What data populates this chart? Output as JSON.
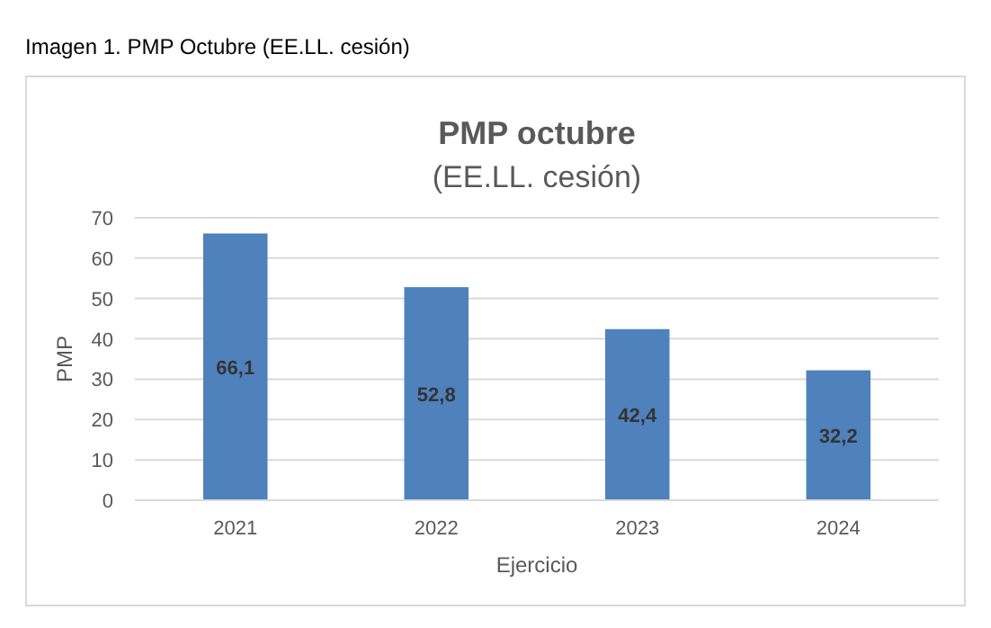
{
  "chart_data": {
    "type": "bar",
    "title": "PMP octubre",
    "subtitle": "(EE.LL. cesión)",
    "annotations": [
      "Imagen 1. PMP Octubre (EE.LL. cesión)"
    ],
    "xlabel": "Ejercicio",
    "ylabel": "PMP",
    "categories": [
      "2021",
      "2022",
      "2023",
      "2024"
    ],
    "values": [
      66.1,
      52.8,
      42.4,
      32.2
    ],
    "value_labels": [
      "66,1",
      "52,8",
      "42,4",
      "32,2"
    ],
    "color": "#4f81bd",
    "ylim": [
      0,
      70
    ],
    "yticks": [
      0,
      10,
      20,
      30,
      40,
      50,
      60,
      70
    ],
    "grid": "y"
  }
}
